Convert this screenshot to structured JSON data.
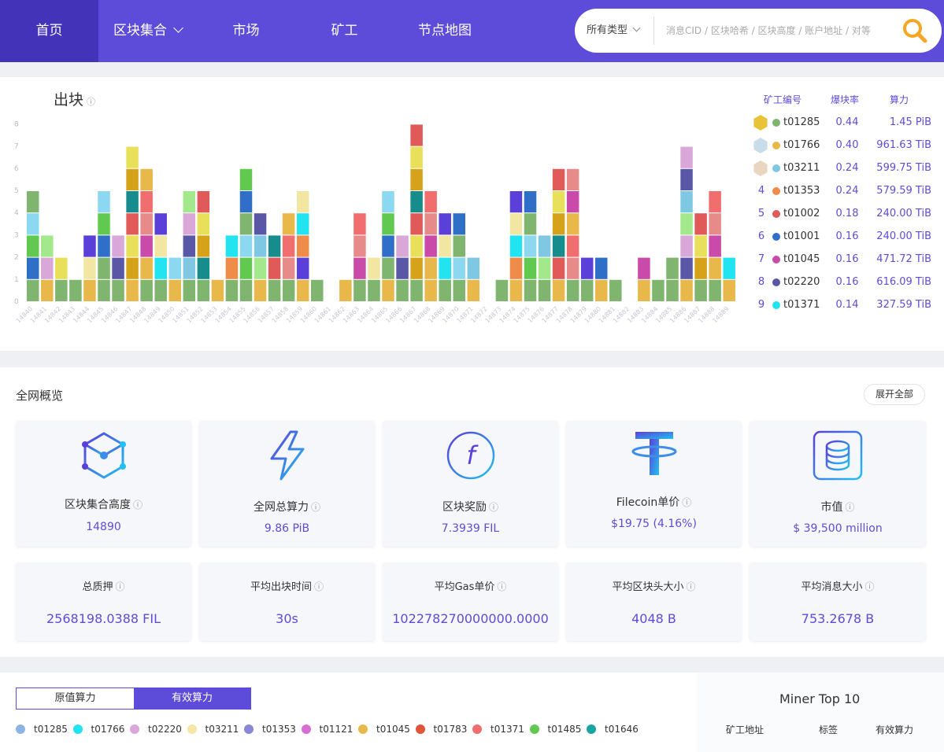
{
  "nav": {
    "items": [
      {
        "label": "首页",
        "active": true
      },
      {
        "label": "区块集合",
        "dropdown": true
      },
      {
        "label": "市场"
      },
      {
        "label": "矿工"
      },
      {
        "label": "节点地图"
      }
    ]
  },
  "search": {
    "type_label": "所有类型",
    "placeholder": "消息CID / 区块哈希 / 区块高度 / 账户地址 / 对等"
  },
  "blocks": {
    "title": "出块",
    "info_icon": "info-icon"
  },
  "chart_data": {
    "type": "bar",
    "stacked": true,
    "title": "",
    "xlabel": "",
    "ylabel": "",
    "ylim": [
      0,
      8
    ],
    "yticks": [
      "0",
      "1",
      "2",
      "3",
      "4",
      "5",
      "6",
      "7",
      "8"
    ],
    "categories": [
      "14840",
      "14841",
      "14842",
      "14843",
      "14844",
      "14845",
      "14846",
      "14847",
      "14848",
      "14849",
      "14850",
      "14851",
      "14852",
      "14853",
      "14854",
      "14855",
      "14856",
      "14857",
      "14858",
      "14859",
      "14860",
      "14861",
      "14862",
      "14863",
      "14864",
      "14865",
      "14866",
      "14867",
      "14868",
      "14869",
      "14870",
      "14871",
      "14872",
      "14873",
      "14874",
      "14875",
      "14876",
      "14877",
      "14878",
      "14879",
      "14880",
      "14881",
      "14882",
      "14883",
      "14884",
      "14885",
      "14886",
      "14887",
      "14888",
      "14889"
    ],
    "values": [
      5,
      3,
      2,
      1,
      3,
      5,
      3,
      7,
      6,
      4,
      2,
      5,
      5,
      1,
      3,
      6,
      4,
      3,
      4,
      5,
      1,
      0,
      1,
      4,
      2,
      5,
      3,
      8,
      5,
      4,
      4,
      2,
      0,
      1,
      5,
      5,
      3,
      6,
      6,
      2,
      2,
      1,
      0,
      2,
      1,
      2,
      7,
      4,
      5,
      2
    ],
    "palette": [
      "#7fb56e",
      "#e8b84a",
      "#7ec8e3",
      "#f08c4a",
      "#e05a5a",
      "#2f6fc7",
      "#c94aa8",
      "#5a58a6",
      "#22e3f0",
      "#178c8c",
      "#62c950",
      "#e68a8a",
      "#d9a8d9",
      "#f2e6a3",
      "#d6a21a",
      "#8cd8f0",
      "#f06e6e",
      "#a3e88a",
      "#5b3fd9",
      "#e8e05a"
    ]
  },
  "top_miners": {
    "headers": {
      "id": "矿工编号",
      "rate": "爆块率",
      "power": "算力"
    },
    "rows": [
      {
        "rank": "1",
        "medal": "gold",
        "id": "t01285",
        "rate": "0.44",
        "power": "1.45 PiB",
        "color": "#7fb56e"
      },
      {
        "rank": "2",
        "medal": "silver",
        "id": "t01766",
        "rate": "0.40",
        "power": "961.63 TiB",
        "color": "#e8b84a"
      },
      {
        "rank": "3",
        "medal": "bronze",
        "id": "t03211",
        "rate": "0.24",
        "power": "599.75 TiB",
        "color": "#7ec8e3"
      },
      {
        "rank": "4",
        "id": "t01353",
        "rate": "0.24",
        "power": "579.59 TiB",
        "color": "#f08c4a"
      },
      {
        "rank": "5",
        "id": "t01002",
        "rate": "0.18",
        "power": "240.00 TiB",
        "color": "#e05a5a"
      },
      {
        "rank": "6",
        "id": "t01001",
        "rate": "0.16",
        "power": "240.00 TiB",
        "color": "#2f6fc7"
      },
      {
        "rank": "7",
        "id": "t01045",
        "rate": "0.16",
        "power": "471.72 TiB",
        "color": "#c94aa8"
      },
      {
        "rank": "8",
        "id": "t02220",
        "rate": "0.16",
        "power": "616.09 TiB",
        "color": "#5a58a6"
      },
      {
        "rank": "9",
        "id": "t01371",
        "rate": "0.14",
        "power": "327.59 TiB",
        "color": "#22e3f0"
      }
    ]
  },
  "overview": {
    "title": "全网概览",
    "expand_label": "展开全部",
    "stats_top": [
      {
        "label": "区块集合高度",
        "value": "14890",
        "icon": "cube-network-icon"
      },
      {
        "label": "全网总算力",
        "value": "9.86 PiB",
        "icon": "lightning-icon"
      },
      {
        "label": "区块奖励",
        "value": "7.3939 FIL",
        "icon": "filecoin-icon"
      },
      {
        "label": "Filecoin单价",
        "value": "$19.75 (4.16%)",
        "icon": "tether-icon"
      },
      {
        "label": "市值",
        "value": "$ 39,500 million",
        "icon": "coin-stack-icon"
      }
    ],
    "stats_bottom": [
      {
        "label": "总质押",
        "value": "2568198.0388 FIL"
      },
      {
        "label": "平均出块时间",
        "value": "30s"
      },
      {
        "label": "平均Gas单价",
        "value": "102278270000000.0000"
      },
      {
        "label": "平均区块头大小",
        "value": "4048 B"
      },
      {
        "label": "平均消息大小",
        "value": "753.2678 B"
      }
    ]
  },
  "power_section": {
    "tabs": [
      {
        "label": "原值算力",
        "active": false
      },
      {
        "label": "有效算力",
        "active": true
      }
    ],
    "legend": [
      {
        "name": "t01285",
        "color": "#8eb4e3"
      },
      {
        "name": "t01766",
        "color": "#22e3f0"
      },
      {
        "name": "t02220",
        "color": "#d9a8d9"
      },
      {
        "name": "t03211",
        "color": "#f5e6a3"
      },
      {
        "name": "t01353",
        "color": "#8a87d6"
      },
      {
        "name": "t01121",
        "color": "#d66ed6"
      },
      {
        "name": "t01045",
        "color": "#e8b84a"
      },
      {
        "name": "t01783",
        "color": "#e0553a"
      },
      {
        "name": "t01371",
        "color": "#f06e6e"
      },
      {
        "name": "t01485",
        "color": "#62c950"
      },
      {
        "name": "t01646",
        "color": "#1aa3a3"
      }
    ]
  },
  "miner_top10": {
    "title": "Miner Top 10",
    "headers": [
      "矿工地址",
      "标签",
      "有效算力"
    ]
  }
}
